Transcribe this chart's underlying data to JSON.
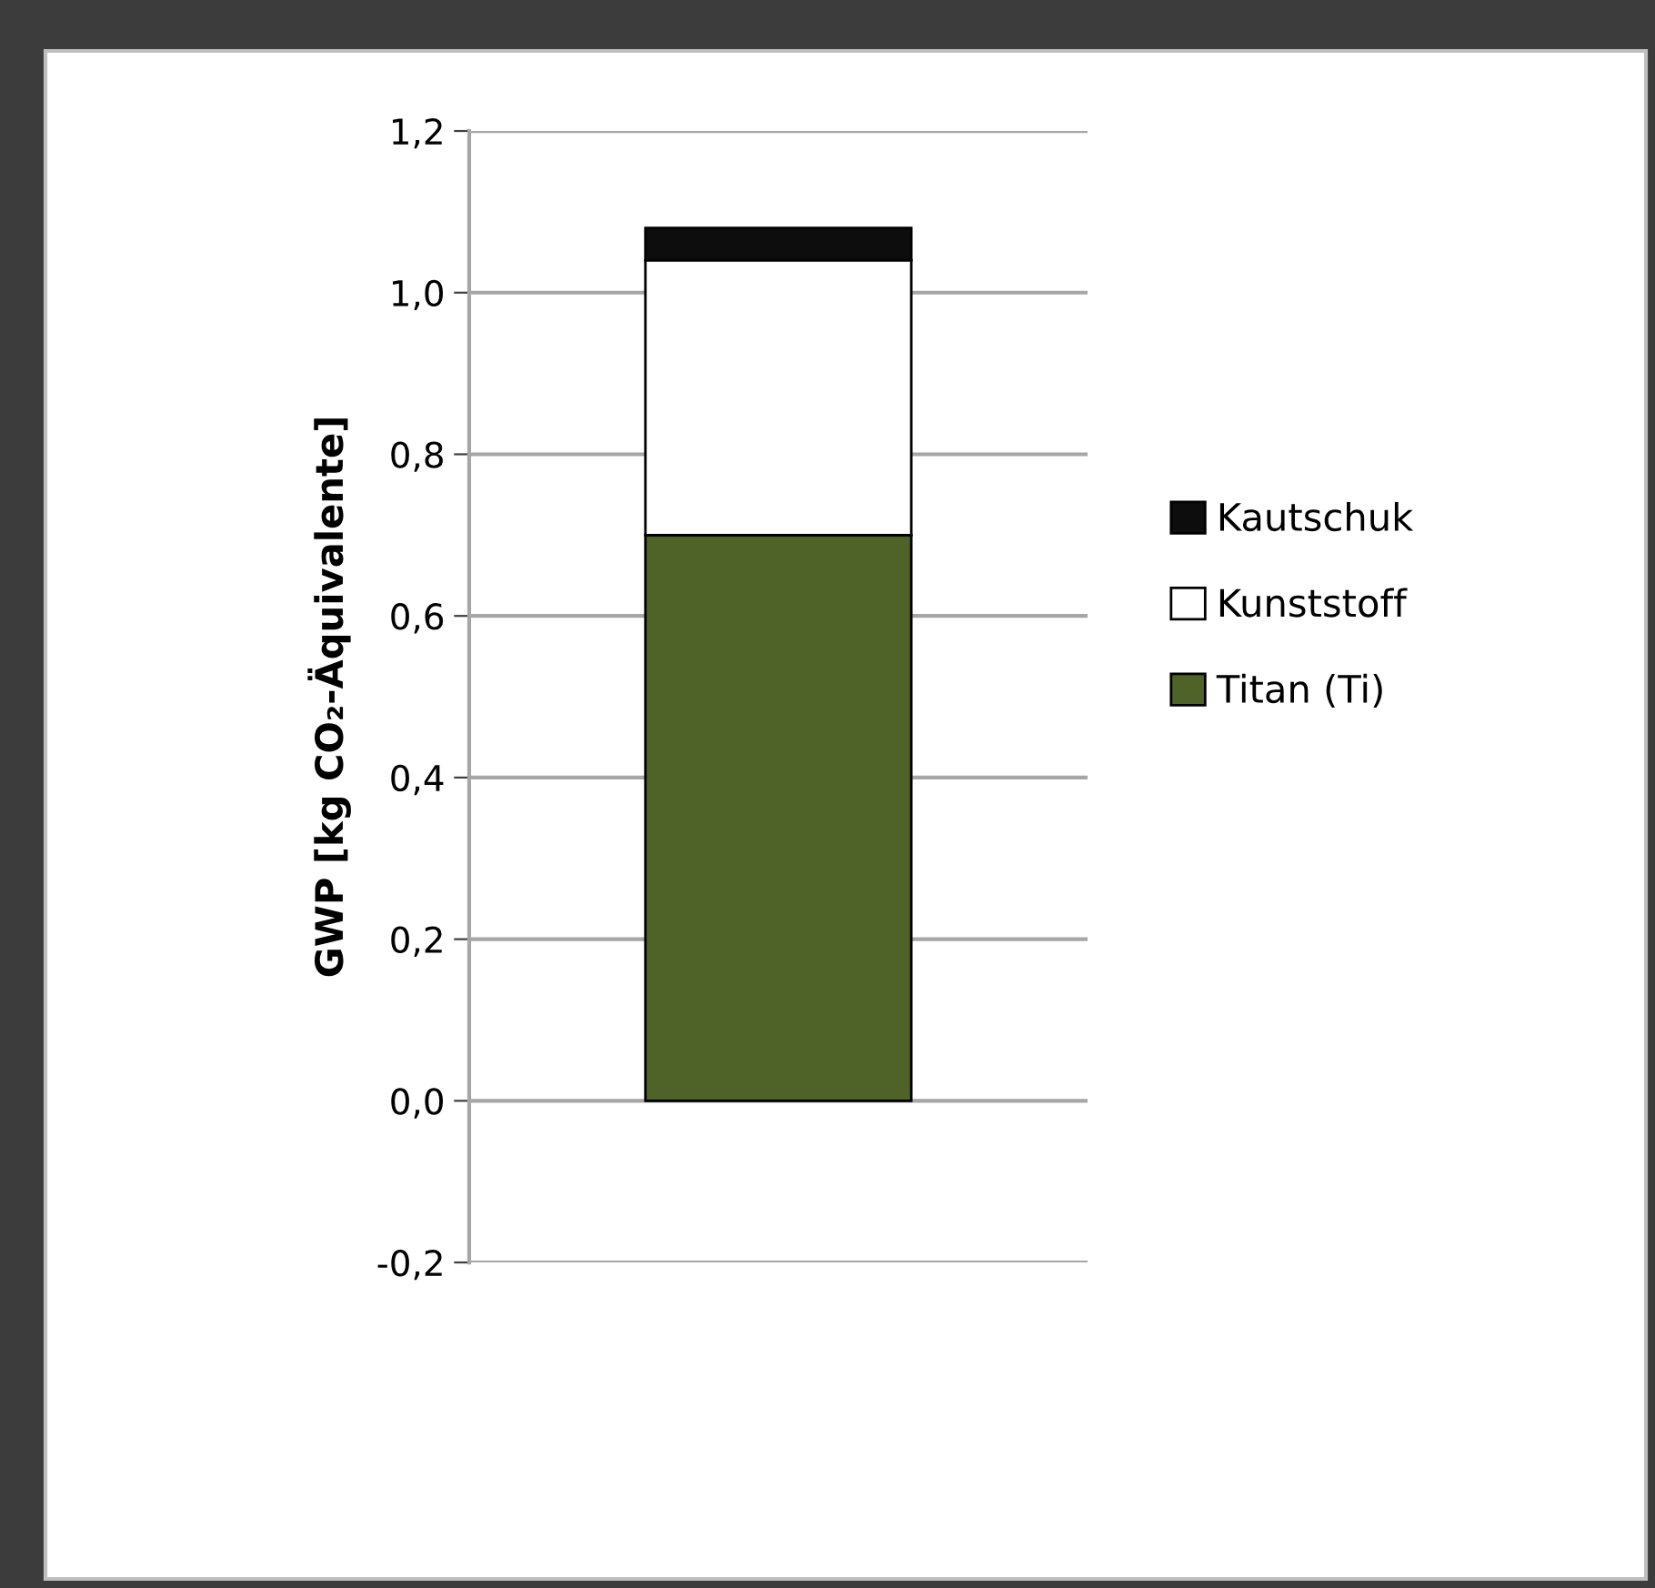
{
  "chart_data": {
    "type": "bar",
    "stacked": true,
    "categories": [
      null
    ],
    "series": [
      {
        "name": "Titan (Ti)",
        "color": "#4f6228",
        "values": [
          0.7
        ]
      },
      {
        "name": "Kunststoff",
        "color": "#ffffff",
        "values": [
          0.34
        ]
      },
      {
        "name": "Kautschuk",
        "color": "#0d0d0d",
        "values": [
          0.04
        ]
      }
    ],
    "ylabel": "GWP [kg CO₂-Äquivalente]",
    "ylim": [
      -0.2,
      1.2
    ],
    "yticks": [
      {
        "value": -0.2,
        "label": "-0,2"
      },
      {
        "value": 0.0,
        "label": "0,0"
      },
      {
        "value": 0.2,
        "label": "0,2"
      },
      {
        "value": 0.4,
        "label": "0,4"
      },
      {
        "value": 0.6,
        "label": "0,6"
      },
      {
        "value": 0.8,
        "label": "0,8"
      },
      {
        "value": 1.0,
        "label": "1,0"
      },
      {
        "value": 1.2,
        "label": "1,2"
      }
    ],
    "grid": "y",
    "legend": "right",
    "tick_labels": "y"
  }
}
